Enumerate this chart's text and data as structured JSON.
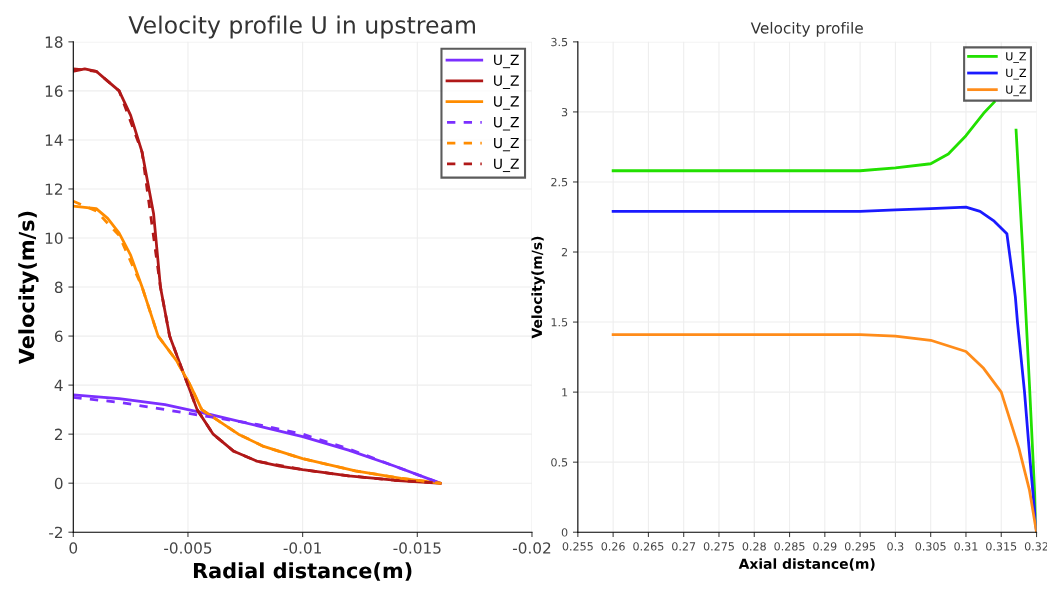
{
  "chart_data": [
    {
      "type": "line",
      "title": "Velocity profile U in upstream",
      "xlabel": "Radial distance(m)",
      "ylabel": "Velocity(m/s)",
      "xlim": [
        0,
        -0.02
      ],
      "xticks": [
        0,
        -0.005,
        -0.01,
        -0.015,
        -0.02
      ],
      "ylim": [
        -2,
        18
      ],
      "yticks": [
        -2,
        0,
        2,
        4,
        6,
        8,
        10,
        12,
        14,
        16,
        18
      ],
      "grid": true,
      "legend": "top right",
      "marker": "none",
      "series": [
        {
          "name": "U_Z",
          "color": "#7b2fff",
          "line_style": "solid",
          "x": [
            0,
            -0.002,
            -0.004,
            -0.006,
            -0.008,
            -0.01,
            -0.012,
            -0.014,
            -0.016
          ],
          "values": [
            3.6,
            3.45,
            3.2,
            2.8,
            2.35,
            1.9,
            1.35,
            0.7,
            0
          ]
        },
        {
          "name": "U_Z",
          "color": "#b01818",
          "line_style": "solid",
          "x": [
            0,
            -0.0005,
            -0.001,
            -0.0015,
            -0.002,
            -0.0025,
            -0.003,
            -0.0035,
            -0.0038,
            -0.0042,
            -0.005,
            -0.0054,
            -0.0061,
            -0.007,
            -0.008,
            -0.009,
            -0.01,
            -0.012,
            -0.014,
            -0.016
          ],
          "values": [
            16.8,
            16.9,
            16.8,
            16.4,
            16.0,
            15.0,
            13.5,
            11.0,
            8.0,
            6.0,
            4.0,
            3.0,
            2.0,
            1.3,
            0.9,
            0.7,
            0.55,
            0.3,
            0.12,
            0
          ]
        },
        {
          "name": "U_Z",
          "color": "#ff8c00",
          "line_style": "solid",
          "x": [
            0,
            -0.001,
            -0.0015,
            -0.002,
            -0.0025,
            -0.003,
            -0.0037,
            -0.0045,
            -0.0051,
            -0.0056,
            -0.0064,
            -0.0072,
            -0.0083,
            -0.01,
            -0.0123,
            -0.0143,
            -0.016
          ],
          "values": [
            11.3,
            11.2,
            10.8,
            10.2,
            9.3,
            8.0,
            6.0,
            5.0,
            4.0,
            3.0,
            2.5,
            2.0,
            1.5,
            1.0,
            0.5,
            0.2,
            0
          ]
        },
        {
          "name": "U_Z",
          "color": "#7b2fff",
          "line_style": "dashed",
          "x": [
            0,
            -0.002,
            -0.004,
            -0.006,
            -0.008,
            -0.01,
            -0.012,
            -0.014,
            -0.016
          ],
          "values": [
            3.5,
            3.3,
            3.0,
            2.7,
            2.4,
            2.0,
            1.4,
            0.7,
            0
          ]
        },
        {
          "name": "U_Z",
          "color": "#ff8c00",
          "line_style": "dashed",
          "x": [
            0,
            -0.001,
            -0.002,
            -0.003,
            -0.0037,
            -0.0045,
            -0.0051,
            -0.0056,
            -0.0064,
            -0.0072,
            -0.0083,
            -0.01,
            -0.0123,
            -0.0143,
            -0.016
          ],
          "values": [
            11.5,
            11.1,
            10.1,
            8.0,
            6.0,
            5.0,
            4.0,
            3.0,
            2.5,
            2.0,
            1.5,
            1.0,
            0.5,
            0.2,
            0
          ]
        },
        {
          "name": "U_Z",
          "color": "#b01818",
          "line_style": "dashed",
          "x": [
            0,
            -0.001,
            -0.002,
            -0.003,
            -0.0038,
            -0.0042,
            -0.005,
            -0.0054,
            -0.0061,
            -0.007,
            -0.008,
            -0.01,
            -0.012,
            -0.014,
            -0.016
          ],
          "values": [
            16.9,
            16.8,
            16.0,
            13.5,
            8.0,
            6.0,
            4.0,
            3.0,
            2.0,
            1.3,
            0.9,
            0.55,
            0.3,
            0.12,
            0
          ]
        }
      ]
    },
    {
      "type": "line",
      "title": "Velocity profile",
      "xlabel": "Axial distance(m)",
      "ylabel": "Velocity(m/s)",
      "xlim": [
        0.255,
        0.32
      ],
      "xticks": [
        0.255,
        0.26,
        0.265,
        0.27,
        0.275,
        0.28,
        0.285,
        0.29,
        0.295,
        0.3,
        0.305,
        0.31,
        0.315,
        0.32
      ],
      "ylim": [
        0,
        3.5
      ],
      "yticks": [
        0,
        0.5,
        1,
        1.5,
        2,
        2.5,
        3,
        3.5
      ],
      "grid": true,
      "legend": "top right",
      "marker": "none",
      "series": [
        {
          "name": "U_Z",
          "color": "#22e000",
          "line_style": "solid",
          "x": [
            0.26,
            0.27,
            0.28,
            0.29,
            0.295,
            0.3,
            0.305,
            0.3075,
            0.31,
            0.3125,
            0.314,
            0.316,
            0.3171,
            0.318,
            0.319,
            0.32
          ],
          "values": [
            2.58,
            2.58,
            2.58,
            2.58,
            2.58,
            2.6,
            2.63,
            2.7,
            2.83,
            2.99,
            3.07,
            null,
            2.87,
            2.05,
            1.05,
            0
          ]
        },
        {
          "name": "U_Z",
          "color": "#1a1aff",
          "line_style": "solid",
          "x": [
            0.26,
            0.27,
            0.28,
            0.29,
            0.295,
            0.3,
            0.305,
            0.31,
            0.312,
            0.314,
            0.3158,
            0.317,
            0.3173,
            0.3183,
            0.3191,
            0.32
          ],
          "values": [
            2.29,
            2.29,
            2.29,
            2.29,
            2.29,
            2.3,
            2.31,
            2.32,
            2.29,
            2.22,
            2.13,
            1.68,
            1.5,
            1.0,
            0.5,
            0
          ]
        },
        {
          "name": "U_Z",
          "color": "#ff8c1a",
          "line_style": "solid",
          "x": [
            0.26,
            0.27,
            0.28,
            0.29,
            0.295,
            0.3,
            0.305,
            0.31,
            0.3125,
            0.315,
            0.3175,
            0.319,
            0.32
          ],
          "values": [
            1.41,
            1.41,
            1.41,
            1.41,
            1.41,
            1.4,
            1.37,
            1.29,
            1.17,
            1.0,
            0.6,
            0.3,
            0
          ]
        }
      ]
    }
  ]
}
